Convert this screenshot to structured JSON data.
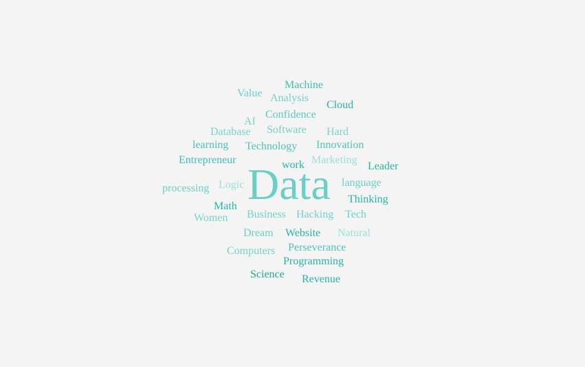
{
  "word_cloud": {
    "words": [
      {
        "text": "Data",
        "color": "#6ccfc6"
      },
      {
        "text": "Machine",
        "color": "#3fbfb0"
      },
      {
        "text": "Value",
        "color": "#6ccfc6"
      },
      {
        "text": "Analysis",
        "color": "#76d0c8"
      },
      {
        "text": "Cloud",
        "color": "#29b3a4"
      },
      {
        "text": "Confidence",
        "color": "#5cc9bd"
      },
      {
        "text": "AI",
        "color": "#7ad3ca"
      },
      {
        "text": "Database",
        "color": "#7ad3ca"
      },
      {
        "text": "Software",
        "color": "#76d0c8"
      },
      {
        "text": "Hard",
        "color": "#7ad3ca"
      },
      {
        "text": "learning",
        "color": "#4fc3b6"
      },
      {
        "text": "Technology",
        "color": "#4fc3b6"
      },
      {
        "text": "Innovation",
        "color": "#4fc3b6"
      },
      {
        "text": "Entrepreneur",
        "color": "#3fbfb0"
      },
      {
        "text": "work",
        "color": "#29b3a4"
      },
      {
        "text": "Marketing",
        "color": "#9be0d9"
      },
      {
        "text": "Leader",
        "color": "#29b3a4"
      },
      {
        "text": "processing",
        "color": "#6ccfc6"
      },
      {
        "text": "Logic",
        "color": "#9be0d9"
      },
      {
        "text": "language",
        "color": "#6ccfc6"
      },
      {
        "text": "Thinking",
        "color": "#29b3a4"
      },
      {
        "text": "Math",
        "color": "#29b3a4"
      },
      {
        "text": "Business",
        "color": "#76d0c8"
      },
      {
        "text": "Hacking",
        "color": "#76d0c8"
      },
      {
        "text": "Tech",
        "color": "#6ccfc6"
      },
      {
        "text": "Women",
        "color": "#7ad3ca"
      },
      {
        "text": "Dream",
        "color": "#6ccfc6"
      },
      {
        "text": "Website",
        "color": "#29b3a4"
      },
      {
        "text": "Natural",
        "color": "#9be0d9"
      },
      {
        "text": "Perseverance",
        "color": "#4fc3b6"
      },
      {
        "text": "Computers",
        "color": "#76d0c8"
      },
      {
        "text": "Programming",
        "color": "#29b3a4"
      },
      {
        "text": "Science",
        "color": "#1fa89a"
      },
      {
        "text": "Revenue",
        "color": "#29b3a4"
      }
    ]
  }
}
